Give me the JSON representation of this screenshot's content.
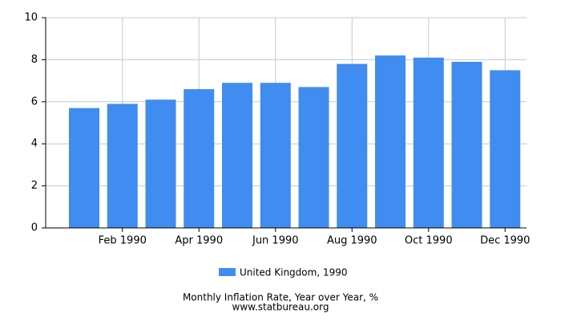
{
  "chart_data": {
    "type": "bar",
    "title": "Monthly Inflation Rate, Year over Year, %",
    "source": "www.statbureau.org",
    "categories": [
      null,
      "Feb 1990",
      null,
      "Apr 1990",
      null,
      "Jun 1990",
      null,
      "Aug 1990",
      null,
      "Oct 1990",
      null,
      "Dec 1990"
    ],
    "series": [
      {
        "name": "United Kingdom, 1990",
        "color": "#418cf0",
        "values": [
          5.7,
          5.9,
          6.1,
          6.6,
          6.9,
          6.9,
          6.7,
          7.8,
          8.2,
          8.1,
          7.9,
          7.5
        ]
      }
    ],
    "ylim": [
      0,
      10
    ],
    "yticks": [
      0,
      2,
      4,
      6,
      8,
      10
    ],
    "grid": true
  }
}
